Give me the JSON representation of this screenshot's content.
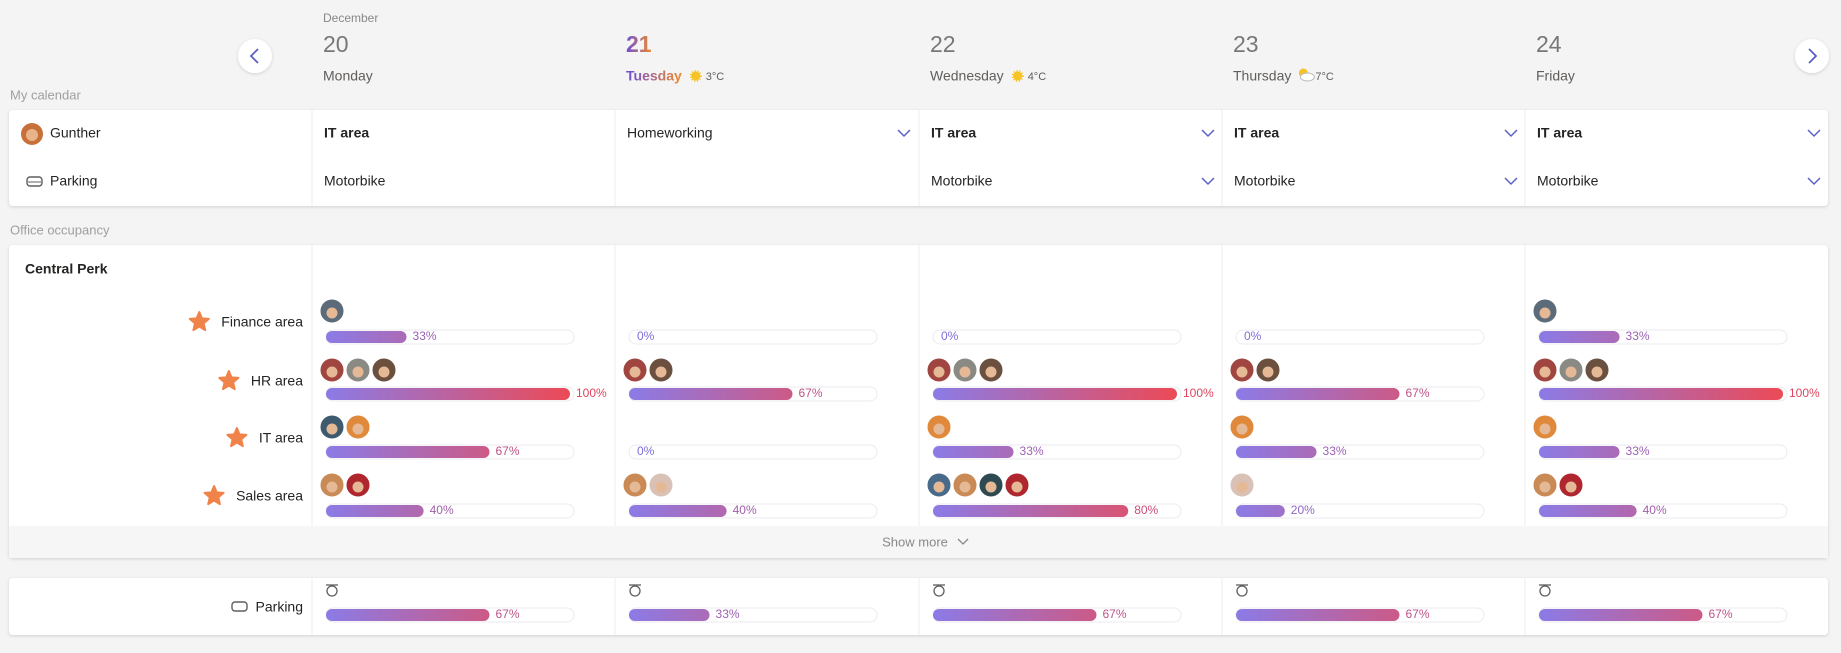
{
  "header": {
    "month": "December",
    "days": [
      {
        "date": "20",
        "weekday": "Monday"
      },
      {
        "date": "21",
        "weekday": "Tuesday",
        "today": true,
        "weather": "3°C",
        "weather_icon": "sun"
      },
      {
        "date": "22",
        "weekday": "Wednesday",
        "weather": "4°C",
        "weather_icon": "sun"
      },
      {
        "date": "23",
        "weekday": "Thursday",
        "weather": "7°C",
        "weather_icon": "cloud"
      },
      {
        "date": "24",
        "weekday": "Friday"
      }
    ]
  },
  "my_calendar": {
    "label": "My calendar",
    "rows": [
      {
        "name": "Gunther",
        "icon": "avatar",
        "cells": [
          {
            "text": "IT area",
            "bold": true,
            "dropdown": false
          },
          {
            "text": "Homeworking",
            "bold": false,
            "dropdown": true
          },
          {
            "text": "IT area",
            "bold": true,
            "dropdown": true
          },
          {
            "text": "IT area",
            "bold": true,
            "dropdown": true
          },
          {
            "text": "IT area",
            "bold": true,
            "dropdown": true
          }
        ]
      },
      {
        "name": "Parking",
        "icon": "car",
        "cells": [
          {
            "text": "Motorbike",
            "bold": false,
            "dropdown": false
          },
          {
            "text": null,
            "bold": false,
            "dropdown": false
          },
          {
            "text": "Motorbike",
            "bold": false,
            "dropdown": true
          },
          {
            "text": "Motorbike",
            "bold": false,
            "dropdown": true
          },
          {
            "text": "Motorbike",
            "bold": false,
            "dropdown": true
          }
        ]
      }
    ]
  },
  "occupancy": {
    "label": "Office occupancy",
    "office": "Central Perk",
    "show_more": "Show more",
    "areas": [
      {
        "name": "Finance area",
        "cells": [
          {
            "percent": 33,
            "percent_label": "33%",
            "avatars": [
              "#5b6b7a"
            ]
          },
          {
            "percent": 0,
            "percent_label": "0%",
            "avatars": []
          },
          {
            "percent": 0,
            "percent_label": "0%",
            "avatars": []
          },
          {
            "percent": 0,
            "percent_label": "0%",
            "avatars": []
          },
          {
            "percent": 33,
            "percent_label": "33%",
            "avatars": [
              "#5b6b7a"
            ]
          }
        ]
      },
      {
        "name": "HR area",
        "cells": [
          {
            "percent": 100,
            "percent_label": "100%",
            "avatars": [
              "#a0453f",
              "#8a8a84",
              "#6b5040"
            ]
          },
          {
            "percent": 67,
            "percent_label": "67%",
            "avatars": [
              "#a0453f",
              "#6b5040"
            ]
          },
          {
            "percent": 100,
            "percent_label": "100%",
            "avatars": [
              "#a0453f",
              "#8a8a84",
              "#6b5040"
            ]
          },
          {
            "percent": 67,
            "percent_label": "67%",
            "avatars": [
              "#a0453f",
              "#6b5040"
            ]
          },
          {
            "percent": 100,
            "percent_label": "100%",
            "avatars": [
              "#a0453f",
              "#8a8a84",
              "#6b5040"
            ]
          }
        ]
      },
      {
        "name": "IT area",
        "cells": [
          {
            "percent": 67,
            "percent_label": "67%",
            "avatars": [
              "#3d5a6e",
              "#e0893a"
            ]
          },
          {
            "percent": 0,
            "percent_label": "0%",
            "avatars": []
          },
          {
            "percent": 33,
            "percent_label": "33%",
            "avatars": [
              "#e0893a"
            ]
          },
          {
            "percent": 33,
            "percent_label": "33%",
            "avatars": [
              "#e0893a"
            ]
          },
          {
            "percent": 33,
            "percent_label": "33%",
            "avatars": [
              "#e0893a"
            ]
          }
        ]
      },
      {
        "name": "Sales area",
        "cells": [
          {
            "percent": 40,
            "percent_label": "40%",
            "avatars": [
              "#c98a55",
              "#b0262e"
            ]
          },
          {
            "percent": 40,
            "percent_label": "40%",
            "avatars": [
              "#c98a55",
              "#d9c2b5"
            ]
          },
          {
            "percent": 80,
            "percent_label": "80%",
            "avatars": [
              "#4a6a8a",
              "#c98a55",
              "#2e4a50",
              "#b0262e"
            ]
          },
          {
            "percent": 20,
            "percent_label": "20%",
            "avatars": [
              "#d9c2b5"
            ]
          },
          {
            "percent": 40,
            "percent_label": "40%",
            "avatars": [
              "#c98a55",
              "#b0262e"
            ]
          }
        ]
      }
    ]
  },
  "parking": {
    "name": "Parking",
    "cells": [
      {
        "percent": 67,
        "percent_label": "67%"
      },
      {
        "percent": 33,
        "percent_label": "33%"
      },
      {
        "percent": 67,
        "percent_label": "67%"
      },
      {
        "percent": 67,
        "percent_label": "67%"
      },
      {
        "percent": 67,
        "percent_label": "67%"
      }
    ]
  }
}
